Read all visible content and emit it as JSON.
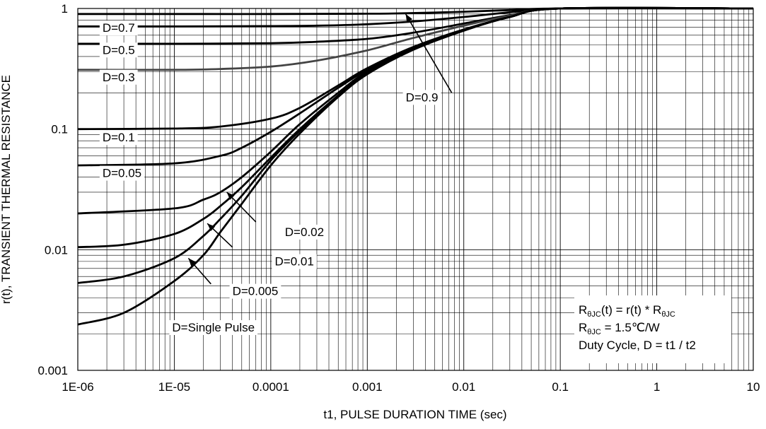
{
  "chart_data": {
    "type": "line",
    "xlabel": "t1, PULSE DURATION TIME (sec)",
    "ylabel": "r(t), TRANSIENT THERMAL RESISTANCE",
    "xscale": "log",
    "yscale": "log",
    "xlim": [
      1e-06,
      10
    ],
    "ylim": [
      0.001,
      1
    ],
    "x_tick_labels": [
      "1E-06",
      "1E-05",
      "0.0001",
      "0.001",
      "0.01",
      "0.1",
      "1",
      "10"
    ],
    "y_tick_labels": [
      "0.001",
      "0.01",
      "0.1",
      "1"
    ],
    "grid": "major and minor (log)",
    "line_color": "#000000",
    "series": [
      {
        "name": "D=0.9",
        "color": "#000000",
        "x": [
          1e-06,
          1e-05,
          0.0001,
          0.001,
          0.002,
          0.005,
          0.01,
          0.03,
          0.1,
          10
        ],
        "y": [
          0.9,
          0.9,
          0.9,
          0.905,
          0.91,
          0.925,
          0.94,
          0.97,
          1.0,
          1.0
        ]
      },
      {
        "name": "D=0.7",
        "color": "#000000",
        "x": [
          1e-06,
          1e-05,
          0.0001,
          0.0003,
          0.001,
          0.003,
          0.01,
          0.03,
          0.1,
          10
        ],
        "y": [
          0.71,
          0.71,
          0.715,
          0.72,
          0.74,
          0.78,
          0.85,
          0.93,
          1.0,
          1.0
        ]
      },
      {
        "name": "D=0.5",
        "color": "#000000",
        "x": [
          1e-06,
          1e-05,
          0.0001,
          0.0003,
          0.001,
          0.003,
          0.01,
          0.03,
          0.1,
          10
        ],
        "y": [
          0.51,
          0.51,
          0.515,
          0.53,
          0.56,
          0.63,
          0.75,
          0.88,
          1.0,
          1.0
        ]
      },
      {
        "name": "D=0.3",
        "color": "#444444",
        "x": [
          1e-06,
          1e-05,
          3e-05,
          0.0001,
          0.0003,
          0.001,
          0.003,
          0.01,
          0.03,
          0.1,
          10
        ],
        "y": [
          0.31,
          0.31,
          0.315,
          0.33,
          0.37,
          0.45,
          0.57,
          0.72,
          0.87,
          1.0,
          1.0
        ]
      },
      {
        "name": "D=0.1",
        "color": "#000000",
        "x": [
          1e-06,
          1e-05,
          3e-05,
          0.0001,
          0.0002,
          0.0005,
          0.001,
          0.003,
          0.01,
          0.03,
          0.1,
          10
        ],
        "y": [
          0.1,
          0.101,
          0.105,
          0.122,
          0.15,
          0.23,
          0.32,
          0.48,
          0.67,
          0.85,
          1.0,
          1.0
        ]
      },
      {
        "name": "D=0.05",
        "color": "#000000",
        "x": [
          1e-06,
          1e-05,
          3e-05,
          5e-05,
          0.0001,
          0.0002,
          0.0005,
          0.001,
          0.003,
          0.01,
          0.03,
          0.1,
          10
        ],
        "y": [
          0.05,
          0.052,
          0.06,
          0.07,
          0.095,
          0.135,
          0.22,
          0.31,
          0.47,
          0.66,
          0.85,
          1.0,
          1.0
        ]
      },
      {
        "name": "D=0.02",
        "color": "#000000",
        "x": [
          1e-06,
          1e-05,
          2e-05,
          3e-05,
          5e-05,
          0.0001,
          0.0002,
          0.0005,
          0.001,
          0.003,
          0.01,
          0.03,
          0.1,
          10
        ],
        "y": [
          0.02,
          0.022,
          0.026,
          0.03,
          0.04,
          0.065,
          0.11,
          0.2,
          0.3,
          0.46,
          0.66,
          0.85,
          1.0,
          1.0
        ]
      },
      {
        "name": "D=0.01",
        "color": "#000000",
        "x": [
          1e-06,
          3e-06,
          1e-05,
          2e-05,
          3e-05,
          5e-05,
          0.0001,
          0.0002,
          0.0005,
          0.001,
          0.003,
          0.01,
          0.03,
          0.1,
          10
        ],
        "y": [
          0.0105,
          0.011,
          0.0135,
          0.018,
          0.023,
          0.033,
          0.058,
          0.1,
          0.19,
          0.29,
          0.46,
          0.66,
          0.85,
          1.0,
          1.0
        ]
      },
      {
        "name": "D=0.005",
        "color": "#000000",
        "x": [
          1e-06,
          3e-06,
          1e-05,
          2e-05,
          3e-05,
          5e-05,
          0.0001,
          0.0002,
          0.0005,
          0.001,
          0.003,
          0.01,
          0.03,
          0.1,
          10
        ],
        "y": [
          0.0053,
          0.006,
          0.0085,
          0.013,
          0.018,
          0.028,
          0.055,
          0.097,
          0.19,
          0.29,
          0.46,
          0.66,
          0.85,
          1.0,
          1.0
        ]
      },
      {
        "name": "D=Single Pulse",
        "color": "#000000",
        "x": [
          1e-06,
          3e-06,
          1e-05,
          2e-05,
          3e-05,
          5e-05,
          0.0001,
          0.0002,
          0.0005,
          0.001,
          0.003,
          0.01,
          0.03,
          0.1,
          10
        ],
        "y": [
          0.0024,
          0.003,
          0.0055,
          0.009,
          0.014,
          0.024,
          0.05,
          0.092,
          0.185,
          0.285,
          0.455,
          0.655,
          0.85,
          1.0,
          1.0
        ]
      }
    ],
    "curve_labels": [
      {
        "text": "D=0.9",
        "x": 0.0025,
        "y": 0.17
      },
      {
        "text": "D=0.7",
        "x": 1.8e-06,
        "y": 0.64
      },
      {
        "text": "D=0.5",
        "x": 1.8e-06,
        "y": 0.42
      },
      {
        "text": "D=0.3",
        "x": 1.8e-06,
        "y": 0.25
      },
      {
        "text": "D=0.1",
        "x": 1.8e-06,
        "y": 0.079
      },
      {
        "text": "D=0.05",
        "x": 1.8e-06,
        "y": 0.04
      },
      {
        "text": "D=0.02",
        "x": 0.00014,
        "y": 0.013
      },
      {
        "text": "D=0.01",
        "x": 0.00011,
        "y": 0.0074
      },
      {
        "text": "D=0.005",
        "x": 4e-05,
        "y": 0.0042
      },
      {
        "text": "D=Single Pulse",
        "x": 9.5e-06,
        "y": 0.0021
      }
    ],
    "pointer_arrows": [
      {
        "label": "D=0.9",
        "from": [
          0.0075,
          0.2
        ],
        "to": [
          0.0025,
          0.9
        ]
      },
      {
        "label": "D=0.02",
        "from": [
          7e-05,
          0.017
        ],
        "to": [
          3.5e-05,
          0.03
        ]
      },
      {
        "label": "D=0.01",
        "from": [
          4e-05,
          0.0105
        ],
        "to": [
          2.2e-05,
          0.0165
        ]
      },
      {
        "label": "D=0.005",
        "from": [
          2.4e-05,
          0.0052
        ],
        "to": [
          1.4e-05,
          0.0085
        ]
      }
    ],
    "annotation": {
      "line1": {
        "R": "R",
        "sub1": "θJC",
        "mid": "(t) = r(t) * R",
        "sub2": "θJC"
      },
      "line2": {
        "R": "R",
        "sub1": "θJC",
        "mid": " = 1.5℃/W"
      },
      "line3": "Duty Cycle, D = t1 / t2"
    }
  }
}
